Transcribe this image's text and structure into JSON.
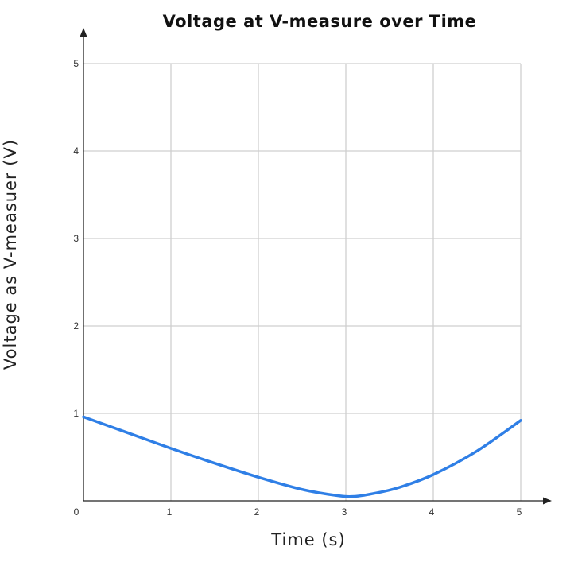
{
  "chart_data": {
    "type": "line",
    "title": "Voltage at V-measure over Time",
    "xlabel": "Time (s)",
    "ylabel": "Voltage as V-measuer (V)",
    "xlim": [
      0,
      5
    ],
    "ylim": [
      0,
      5
    ],
    "xticks": [
      "0",
      "1",
      "2",
      "3",
      "4",
      "5"
    ],
    "yticks": [
      "0",
      "1",
      "2",
      "3",
      "4",
      "5"
    ],
    "grid": true,
    "legend": "none",
    "series": [
      {
        "color": "#2f7fe6",
        "x": [
          0,
          0.5,
          1,
          1.5,
          2,
          2.5,
          2.9,
          3.1,
          3.3,
          3.6,
          4,
          4.5,
          5
        ],
        "y": [
          0.96,
          0.78,
          0.6,
          0.43,
          0.27,
          0.13,
          0.06,
          0.05,
          0.08,
          0.15,
          0.3,
          0.57,
          0.92
        ]
      }
    ]
  }
}
